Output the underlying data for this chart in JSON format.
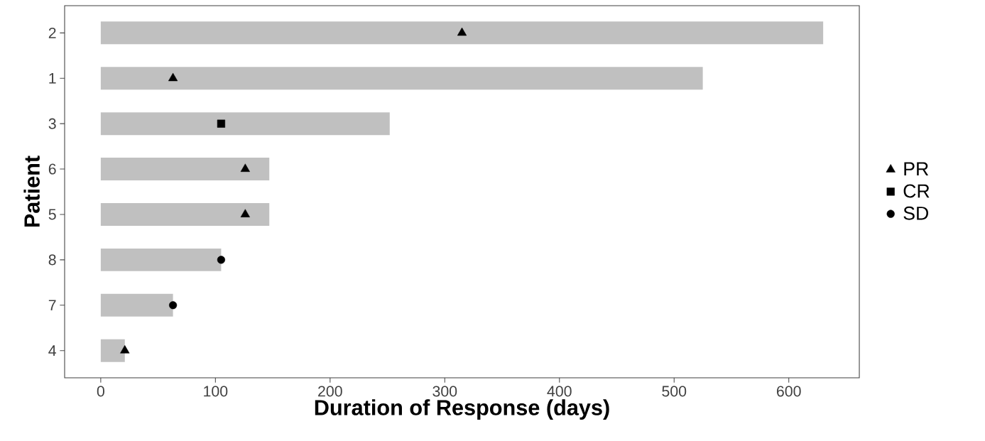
{
  "chart_data": {
    "type": "bar",
    "orientation": "horizontal",
    "xlabel": "Duration of Response (days)",
    "ylabel": "Patient",
    "categories": [
      "2",
      "1",
      "3",
      "6",
      "5",
      "8",
      "7",
      "4"
    ],
    "xlim": [
      -31.5,
      661.5
    ],
    "xticks": [
      0,
      100,
      200,
      300,
      400,
      500,
      600
    ],
    "grid": false,
    "legend": "right",
    "series": [
      {
        "color": "#c0c0c0",
        "values": [
          630,
          525,
          252,
          147,
          147,
          105,
          63,
          21
        ]
      },
      {
        "type": "scatter",
        "name": "PR",
        "marker": "triangle",
        "color": "#000000",
        "x": [
          "2",
          "1",
          "6",
          "5",
          "4"
        ],
        "values": [
          315,
          63,
          126,
          126,
          21
        ]
      },
      {
        "type": "scatter",
        "name": "CR",
        "marker": "square",
        "color": "#000000",
        "x": [
          "3"
        ],
        "values": [
          105
        ]
      },
      {
        "type": "scatter",
        "name": "SD",
        "marker": "circle",
        "color": "#000000",
        "x": [
          "8",
          "7"
        ],
        "values": [
          105,
          63
        ]
      }
    ]
  }
}
